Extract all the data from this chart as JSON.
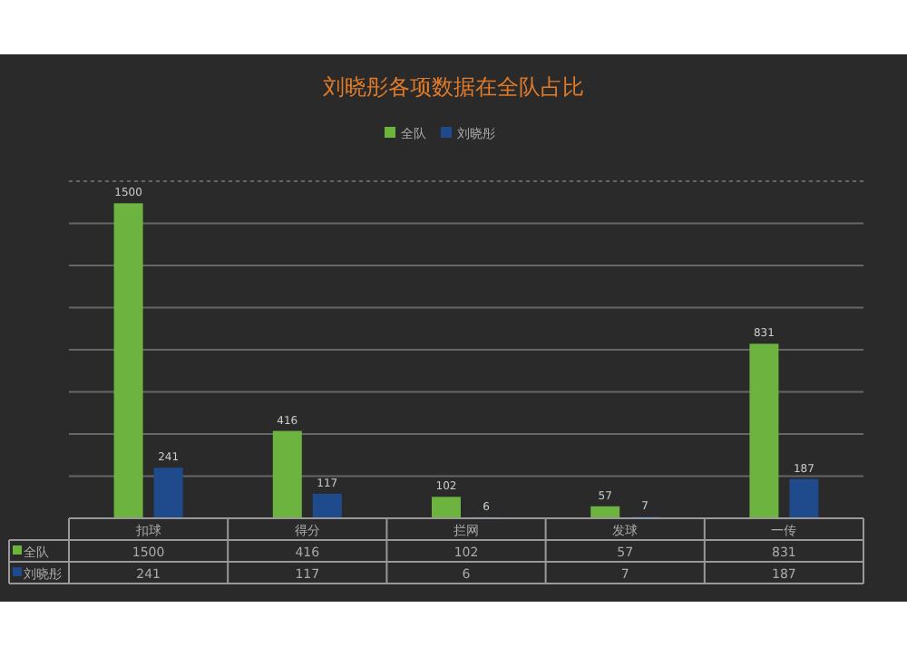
{
  "chart_data": {
    "type": "bar",
    "title": "刘晓彤各项数据在全队占比",
    "categories": [
      "扣球",
      "得分",
      "拦网",
      "发球",
      "一传"
    ],
    "series": [
      {
        "name": "全队",
        "color": "#6db33f",
        "values": [
          1500,
          416,
          102,
          57,
          831
        ],
        "value_labels": [
          "1500",
          "416",
          "102",
          "57",
          "831"
        ]
      },
      {
        "name": "刘晓彤",
        "color": "#1f4a8c",
        "values": [
          241,
          117,
          6,
          7,
          187
        ],
        "value_labels": [
          "241",
          "117",
          "6",
          "7",
          "187"
        ]
      }
    ],
    "annotations": [
      {
        "text": "1500",
        "x": "扣球",
        "y": 1500
      },
      {
        "text": "241",
        "x": "扣球",
        "y": 241
      },
      {
        "text": "416",
        "x": "得分",
        "y": 416
      },
      {
        "text": "117",
        "x": "得分",
        "y": 117
      },
      {
        "text": "102",
        "x": "拦网",
        "y": 102
      },
      {
        "text": "6",
        "x": "拦网",
        "y": 6
      },
      {
        "text": "57",
        "x": "发球",
        "y": 57
      },
      {
        "text": "7",
        "x": "发球",
        "y": 7
      },
      {
        "text": "831",
        "x": "一传",
        "y": 831
      },
      {
        "text": "187",
        "x": "一传",
        "y": 187
      }
    ],
    "grid": "y",
    "legend": "top"
  }
}
